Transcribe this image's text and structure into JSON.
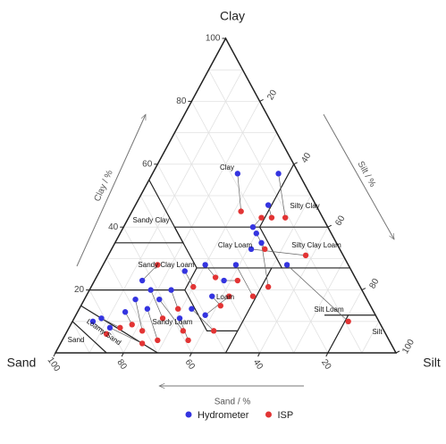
{
  "chart_data": {
    "type": "ternary",
    "axes": {
      "clay": {
        "name": "Clay",
        "label": "Clay / %",
        "ticks": [
          20,
          40,
          60,
          80,
          100
        ]
      },
      "sand": {
        "name": "Sand",
        "label": "Sand / %",
        "ticks": [
          100,
          80,
          60,
          40,
          20
        ]
      },
      "silt": {
        "name": "Silt",
        "label": "Silt / %",
        "ticks": [
          20,
          40,
          60,
          80,
          100
        ]
      }
    },
    "regions": [
      "Clay",
      "Silty Clay",
      "Sandy Clay",
      "Clay Loam",
      "Silty Clay Loam",
      "Sandy Clay Loam",
      "Loam",
      "Silt Loam",
      "Sandy Loam",
      "Loamy Sand",
      "Sand",
      "Silt"
    ],
    "grid": true,
    "connect_pairs": true,
    "legend": "bottom",
    "series": [
      {
        "name": "Hydrometer",
        "color": "#3434e0",
        "clay": [
          57,
          57,
          47,
          40,
          38,
          35,
          28,
          33,
          28,
          28,
          23,
          18,
          26,
          20,
          20,
          17,
          17,
          14,
          13,
          11,
          10,
          8,
          14,
          12,
          11,
          23
        ],
        "sand": [
          18,
          6,
          14,
          22,
          22,
          22,
          18,
          26,
          33,
          42,
          39,
          45,
          49,
          56,
          62,
          61,
          68,
          66,
          73,
          81,
          84,
          80,
          53,
          50,
          58,
          63
        ],
        "silt": [
          25,
          37,
          39,
          38,
          40,
          43,
          54,
          41,
          39,
          30,
          38,
          37,
          25,
          24,
          18,
          22,
          15,
          20,
          14,
          8,
          6,
          12,
          33,
          38,
          31,
          14
        ]
      },
      {
        "name": "ISP",
        "color": "#e23434",
        "clay": [
          45,
          43,
          43,
          43,
          33,
          21,
          10,
          31,
          18,
          24,
          23,
          15,
          21,
          14,
          11,
          7,
          7,
          4,
          9,
          8,
          6,
          3,
          7,
          18,
          4,
          28
        ],
        "sand": [
          23,
          11,
          15,
          18,
          22,
          27,
          9,
          11,
          33,
          41,
          35,
          44,
          49,
          57,
          63,
          59,
          71,
          68,
          73,
          77,
          82,
          73,
          50,
          40,
          59,
          56
        ],
        "silt": [
          32,
          46,
          42,
          39,
          45,
          52,
          81,
          58,
          49,
          35,
          42,
          41,
          30,
          29,
          26,
          34,
          22,
          28,
          18,
          15,
          12,
          24,
          43,
          42,
          37,
          16
        ]
      }
    ]
  }
}
